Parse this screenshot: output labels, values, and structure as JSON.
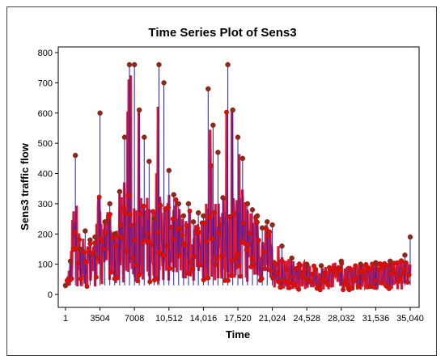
{
  "chart_data": {
    "type": "line",
    "title": "Time Series Plot of Sens3",
    "xlabel": "Time",
    "ylabel": "Sens3 traffic flow",
    "xlim": [
      1,
      35040
    ],
    "ylim": [
      0,
      800
    ],
    "x_ticks": [
      1,
      3504,
      7008,
      10512,
      14016,
      17520,
      21024,
      24528,
      28032,
      31536,
      35040
    ],
    "x_tick_labels": [
      "1",
      "3504",
      "7008",
      "10,512",
      "14,016",
      "17,520",
      "21,024",
      "24,528",
      "28,032",
      "31,536",
      "35,040"
    ],
    "y_ticks": [
      0,
      100,
      200,
      300,
      400,
      500,
      600,
      700,
      800
    ],
    "y_tick_labels": [
      "0",
      "100",
      "200",
      "300",
      "400",
      "500",
      "600",
      "700",
      "800"
    ],
    "grid": false,
    "legend": "none",
    "colors": {
      "line": "#1f1fcc",
      "marker_fill": "#ff0000",
      "marker_outline": "#8b2a1a",
      "plot_border": "#000000",
      "panel_bg": "#ffffff"
    },
    "series": [
      {
        "x": [
          1,
          500,
          1000,
          1500,
          2000,
          2500,
          3000,
          3504,
          4000,
          4500,
          5000,
          5500,
          6000,
          6500,
          7008,
          7500,
          8000,
          8500,
          9000,
          9500,
          10000,
          10512,
          11000,
          11500,
          12000,
          12500,
          13000,
          13500,
          14016,
          14500,
          15000,
          15500,
          16000,
          16500,
          17000,
          17520,
          18000,
          18500,
          19000,
          19500,
          20000,
          20500,
          21024,
          22000,
          23000,
          24528,
          26000,
          28032,
          30000,
          31536,
          33000,
          34500,
          35040
        ],
        "y": [
          30,
          110,
          460,
          150,
          210,
          180,
          190,
          600,
          240,
          300,
          200,
          340,
          520,
          760,
          760,
          610,
          520,
          440,
          250,
          760,
          700,
          410,
          330,
          300,
          260,
          300,
          240,
          270,
          260,
          680,
          560,
          470,
          320,
          760,
          610,
          520,
          450,
          300,
          280,
          260,
          220,
          240,
          230,
          160,
          120,
          100,
          95,
          110,
          100,
          105,
          110,
          130,
          190
        ]
      }
    ],
    "peak_values": [
      460,
      600,
      760,
      760,
      760,
      680,
      760,
      610,
      190
    ]
  }
}
